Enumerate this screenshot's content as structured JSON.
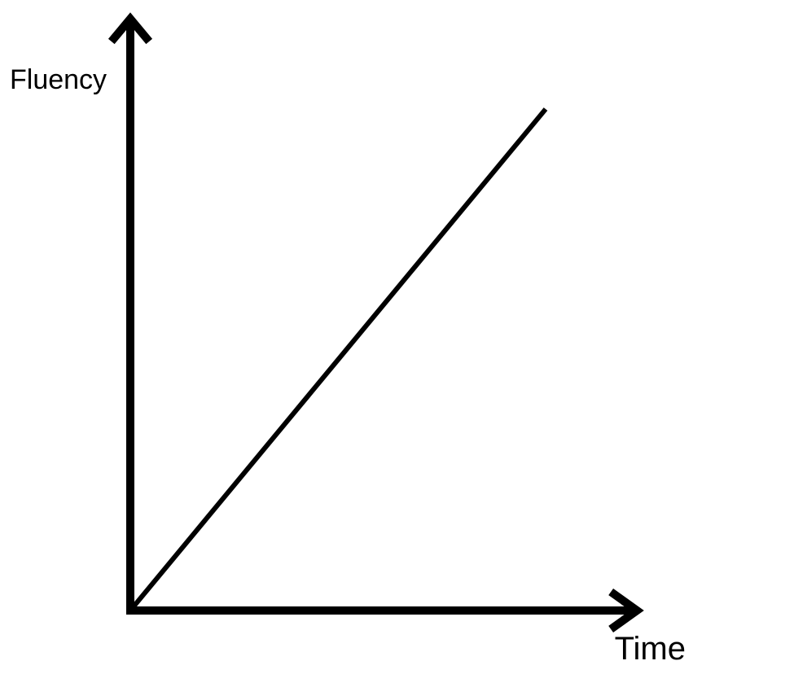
{
  "chart_data": {
    "type": "line",
    "title": "",
    "xlabel": "Time",
    "ylabel": "Fluency",
    "series": [
      {
        "x": [
          0,
          100
        ],
        "values": [
          0,
          100
        ]
      }
    ],
    "xlim": [
      0,
      122
    ],
    "ylim": [
      0,
      118
    ],
    "grid": false,
    "legend": "none",
    "axis_arrows": true,
    "colors": {
      "axis": "#000000",
      "line": "#000000",
      "background": "#ffffff"
    }
  }
}
